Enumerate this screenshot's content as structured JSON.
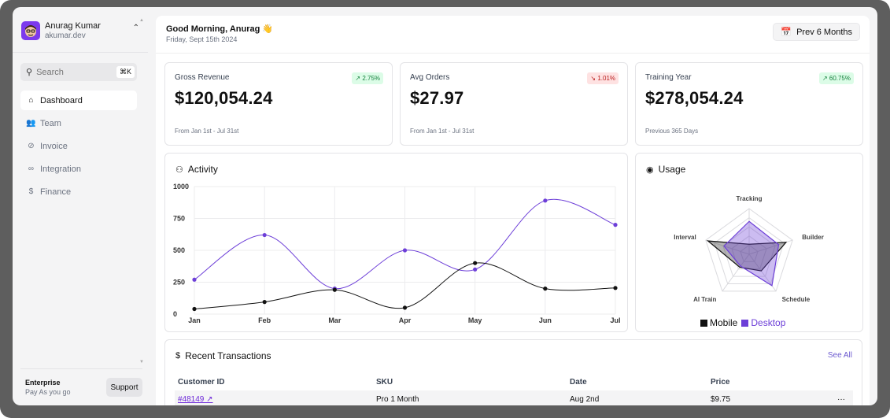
{
  "user": {
    "name": "Anurag Kumar",
    "domain": "akumar.dev"
  },
  "search": {
    "placeholder": "Search",
    "shortcut": "⌘K"
  },
  "nav": [
    {
      "label": "Dashboard",
      "icon": "home-icon",
      "active": true
    },
    {
      "label": "Team",
      "icon": "users-icon",
      "active": false
    },
    {
      "label": "Invoice",
      "icon": "paperclip-icon",
      "active": false
    },
    {
      "label": "Integration",
      "icon": "link-icon",
      "active": false
    },
    {
      "label": "Finance",
      "icon": "dollar-icon",
      "active": false
    }
  ],
  "plan": {
    "title": "Enterprise",
    "subtitle": "Pay As you go",
    "support_label": "Support"
  },
  "header": {
    "greeting": "Good Morning, Anurag 👋",
    "date": "Friday, Sept 15th 2024",
    "range_label": "Prev 6 Months"
  },
  "stats": [
    {
      "label": "Gross Revenue",
      "value": "$120,054.24",
      "badge": "↗ 2.75%",
      "trend": "up",
      "note": "From Jan 1st - Jul 31st"
    },
    {
      "label": "Avg Orders",
      "value": "$27.97",
      "badge": "↘ 1.01%",
      "trend": "down",
      "note": "From Jan 1st - Jul 31st"
    },
    {
      "label": "Training Year",
      "value": "$278,054.24",
      "badge": "↗ 60.75%",
      "trend": "up",
      "note": "Previous 365 Days"
    }
  ],
  "activity": {
    "title": "Activity"
  },
  "usage": {
    "title": "Usage"
  },
  "chart_data": [
    {
      "type": "line",
      "categories": [
        "Jan",
        "Feb",
        "Mar",
        "Apr",
        "May",
        "Jun",
        "Jul"
      ],
      "ylim": [
        0,
        1000
      ],
      "yticks": [
        0,
        250,
        500,
        750,
        1000
      ],
      "grid": true,
      "series": [
        {
          "values": [
            270,
            620,
            200,
            500,
            350,
            890,
            700
          ],
          "color": "#6d3fd8"
        },
        {
          "values": [
            40,
            95,
            190,
            50,
            400,
            200,
            205
          ],
          "color": "#111111"
        }
      ]
    },
    {
      "type": "radar",
      "axes": [
        "Tracking",
        "Builder",
        "Schedule",
        "AI Train",
        "Interval"
      ],
      "max": 100,
      "series": [
        {
          "name": "Mobile",
          "values": [
            22,
            85,
            45,
            35,
            95
          ],
          "color": "#111111"
        },
        {
          "name": "Desktop",
          "values": [
            72,
            68,
            85,
            32,
            58
          ],
          "color": "#6d3fd8"
        }
      ],
      "legend": "bottom"
    }
  ],
  "transactions": {
    "title": "Recent Transactions",
    "see_all": "See All",
    "columns": [
      "Customer ID",
      "SKU",
      "Date",
      "Price"
    ],
    "rows": [
      {
        "customer_id": "#48149 ↗",
        "sku": "Pro 1 Month",
        "date": "Aug 2nd",
        "price": "$9.75",
        "menu": "···"
      }
    ]
  }
}
